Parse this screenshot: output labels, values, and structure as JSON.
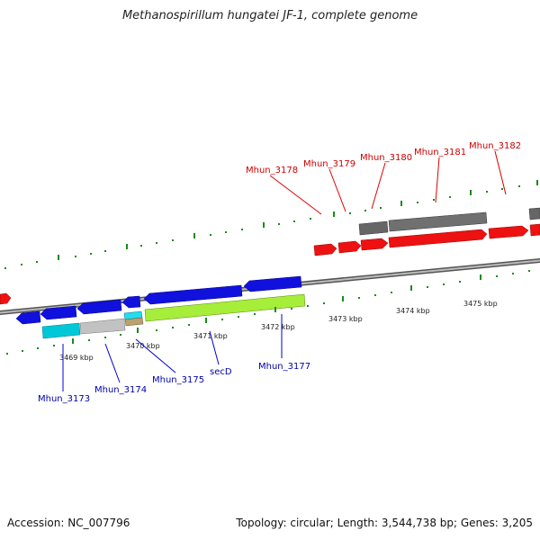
{
  "title": "Methanospirillum hungatei JF-1, complete genome",
  "footer": {
    "accession": "Accession: NC_007796",
    "summary": "Topology: circular; Length: 3,544,738 bp; Genes: 3,205"
  },
  "colors": {
    "forward_gene": "#ff0000",
    "reverse_gene": "#0000ff",
    "forward_label": "#cc0000",
    "reverse_label": "#0000aa",
    "backbone": "#888888",
    "tick": "#1a8a1a",
    "grey_gene": "#666666",
    "cyan_gene": "#00bcd4",
    "lightgrey_gene": "#bbbbbb",
    "lime_gene": "#99ee33"
  },
  "scale": {
    "unit": "kbp",
    "major_ticks": [
      "3469 kbp",
      "3470 kbp",
      "3471 kbp",
      "3472 kbp",
      "3473 kbp",
      "3474 kbp",
      "3475 kbp"
    ]
  },
  "forward_labels": [
    "Mhun_3178",
    "Mhun_3179",
    "Mhun_3180",
    "Mhun_3181",
    "Mhun_3182"
  ],
  "reverse_labels": [
    "Mhun_3173",
    "Mhun_3174",
    "Mhun_3175",
    "secD",
    "Mhun_3177"
  ]
}
